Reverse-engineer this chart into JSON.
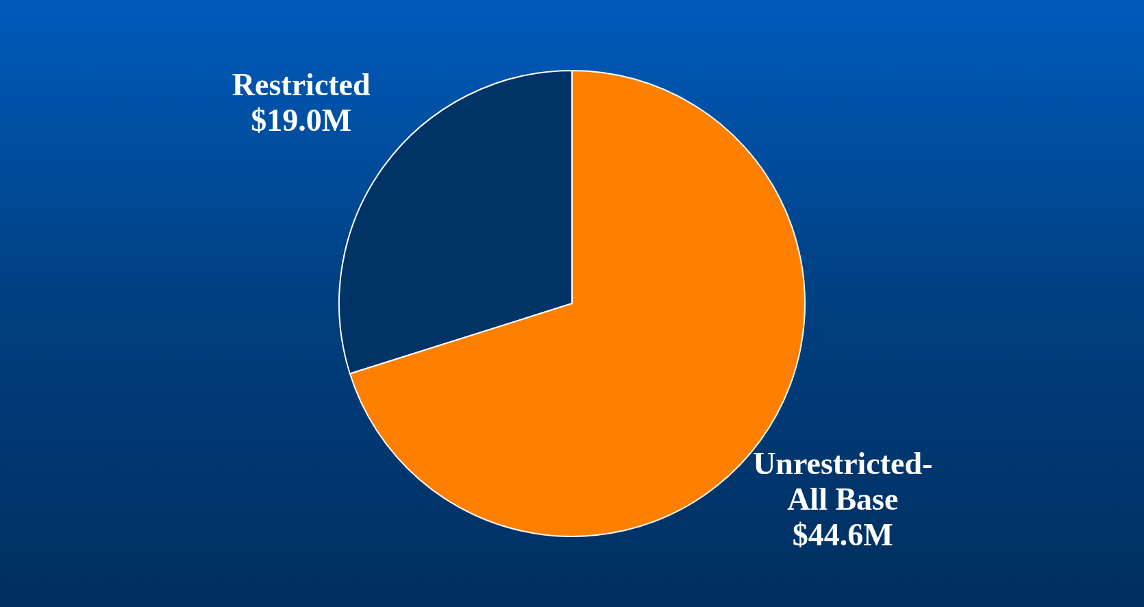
{
  "chart_data": {
    "type": "pie",
    "categories": [
      "Restricted",
      "Unrestricted-All Base"
    ],
    "values": [
      19.0,
      44.6
    ],
    "colors": [
      "#003366",
      "#ff8000"
    ],
    "value_labels": [
      "$19.0M",
      "$44.6M"
    ],
    "legend": false
  }
}
